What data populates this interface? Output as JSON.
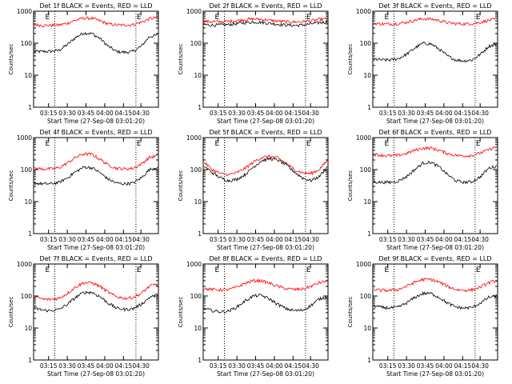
{
  "colors": {
    "events": "#000000",
    "lld": "#ff0000",
    "axis": "#000000"
  },
  "chart_data": [
    {
      "type": "line",
      "title": "Det 1f BLACK = Events, RED = LLD",
      "xlabel": "Start Time (27-Sep-08 03:01:20)",
      "ylabel": "Counts/sec",
      "yscale": "log",
      "ylim": [
        1,
        1000
      ],
      "x_ticks": [
        "03:15",
        "03:30",
        "03:45",
        "04:00",
        "04:15",
        "04:30"
      ],
      "y_ticks": [
        "1",
        "10",
        "100",
        "1000"
      ],
      "markers": [
        "E",
        "E"
      ],
      "series": [
        {
          "color": "#000000",
          "values": [
            55,
            55,
            56,
            60,
            90,
            150,
            210,
            200,
            140,
            80,
            55,
            52,
            55,
            80,
            160,
            180
          ]
        },
        {
          "color": "#ff0000",
          "values": [
            380,
            360,
            360,
            370,
            420,
            520,
            610,
            600,
            500,
            400,
            370,
            370,
            380,
            450,
            580,
            640
          ]
        }
      ]
    },
    {
      "type": "line",
      "title": "Det 2f BLACK = Events, RED = LLD",
      "xlabel": "Start Time (27-Sep-08 03:01:20)",
      "ylabel": "Counts/sec",
      "yscale": "log",
      "ylim": [
        1,
        1000
      ],
      "x_ticks": [
        "03:15",
        "03:30",
        "03:45",
        "04:00",
        "04:15",
        "04:30"
      ],
      "y_ticks": [
        "1",
        "10",
        "100",
        "1000"
      ],
      "markers": [
        "E",
        "E"
      ],
      "series": [
        {
          "color": "#000000",
          "values": [
            380,
            370,
            370,
            380,
            410,
            440,
            460,
            450,
            420,
            390,
            370,
            360,
            370,
            400,
            440,
            460
          ]
        },
        {
          "color": "#ff0000",
          "values": [
            480,
            470,
            470,
            480,
            510,
            550,
            570,
            560,
            520,
            490,
            470,
            460,
            470,
            500,
            550,
            580
          ]
        }
      ]
    },
    {
      "type": "line",
      "title": "Det 3f BLACK = Events, RED = LLD",
      "xlabel": "Start Time (27-Sep-08 03:01:20)",
      "ylabel": "Counts/sec",
      "yscale": "log",
      "ylim": [
        1,
        1000
      ],
      "x_ticks": [
        "03:15",
        "03:30",
        "03:45",
        "04:00",
        "04:15",
        "04:30"
      ],
      "y_ticks": [
        "1",
        "10",
        "100",
        "1000"
      ],
      "markers": [
        "E",
        "E"
      ],
      "series": [
        {
          "color": "#000000",
          "values": [
            32,
            30,
            30,
            33,
            45,
            70,
            100,
            95,
            65,
            40,
            30,
            28,
            30,
            45,
            80,
            95
          ]
        },
        {
          "color": "#ff0000",
          "values": [
            420,
            400,
            400,
            410,
            450,
            520,
            580,
            570,
            510,
            440,
            410,
            400,
            410,
            450,
            520,
            560
          ]
        }
      ]
    },
    {
      "type": "line",
      "title": "Det 4f BLACK = Events, RED = LLD",
      "xlabel": "Start Time (27-Sep-08 03:01:20)",
      "ylabel": "Counts/sec",
      "yscale": "log",
      "ylim": [
        1,
        1000
      ],
      "x_ticks": [
        "03:15",
        "03:30",
        "03:45",
        "04:00",
        "04:15",
        "04:30"
      ],
      "y_ticks": [
        "1",
        "10",
        "100",
        "1000"
      ],
      "markers": [
        "E",
        "E"
      ],
      "series": [
        {
          "color": "#000000",
          "values": [
            38,
            36,
            36,
            40,
            55,
            85,
            120,
            115,
            80,
            50,
            38,
            36,
            38,
            55,
            100,
            120
          ]
        },
        {
          "color": "#ff0000",
          "values": [
            110,
            105,
            105,
            115,
            160,
            240,
            310,
            300,
            210,
            140,
            110,
            105,
            110,
            150,
            240,
            270
          ]
        }
      ]
    },
    {
      "type": "line",
      "title": "Det 5f BLACK = Events, RED = LLD",
      "xlabel": "Start Time (27-Sep-08 03:01:20)",
      "ylabel": "Counts/sec",
      "yscale": "log",
      "ylim": [
        1,
        1000
      ],
      "x_ticks": [
        "03:15",
        "03:30",
        "03:45",
        "04:00",
        "04:15",
        "04:30"
      ],
      "y_ticks": [
        "1",
        "10",
        "100",
        "1000"
      ],
      "markers": [
        "E",
        "E"
      ],
      "series": [
        {
          "color": "#000000",
          "values": [
            130,
            80,
            55,
            45,
            50,
            70,
            120,
            190,
            220,
            200,
            140,
            85,
            55,
            45,
            60,
            120
          ]
        },
        {
          "color": "#ff0000",
          "values": [
            170,
            100,
            75,
            70,
            80,
            110,
            170,
            240,
            260,
            230,
            160,
            100,
            80,
            75,
            100,
            190
          ]
        }
      ]
    },
    {
      "type": "line",
      "title": "Det 6f BLACK = Events, RED = LLD",
      "xlabel": "Start Time (27-Sep-08 03:01:20)",
      "ylabel": "Counts/sec",
      "yscale": "log",
      "ylim": [
        1,
        1000
      ],
      "x_ticks": [
        "03:15",
        "03:30",
        "03:45",
        "04:00",
        "04:15",
        "04:30"
      ],
      "y_ticks": [
        "1",
        "10",
        "100",
        "1000"
      ],
      "markers": [
        "E",
        "E"
      ],
      "series": [
        {
          "color": "#000000",
          "values": [
            42,
            40,
            40,
            44,
            60,
            100,
            160,
            170,
            120,
            70,
            45,
            40,
            42,
            60,
            110,
            130
          ]
        },
        {
          "color": "#ff0000",
          "values": [
            300,
            280,
            270,
            280,
            320,
            400,
            470,
            470,
            400,
            320,
            280,
            270,
            280,
            330,
            420,
            520
          ]
        }
      ]
    },
    {
      "type": "line",
      "title": "Det 7f BLACK = Events, RED = LLD",
      "xlabel": "Start Time (27-Sep-08 03:01:20)",
      "ylabel": "Counts/sec",
      "yscale": "log",
      "ylim": [
        1,
        1000
      ],
      "x_ticks": [
        "03:15",
        "03:30",
        "03:45",
        "04:00",
        "04:15",
        "04:30"
      ],
      "y_ticks": [
        "1",
        "10",
        "100",
        "1000"
      ],
      "markers": [
        "E",
        "E"
      ],
      "series": [
        {
          "color": "#000000",
          "values": [
            42,
            36,
            35,
            38,
            55,
            90,
            130,
            130,
            95,
            60,
            42,
            38,
            40,
            55,
            90,
            110
          ]
        },
        {
          "color": "#ff0000",
          "values": [
            95,
            80,
            78,
            85,
            120,
            190,
            260,
            260,
            200,
            130,
            95,
            85,
            90,
            120,
            200,
            240
          ]
        }
      ]
    },
    {
      "type": "line",
      "title": "Det 8f BLACK = Events, RED = LLD",
      "xlabel": "Start Time (27-Sep-08 03:01:20)",
      "ylabel": "Counts/sec",
      "yscale": "log",
      "ylim": [
        1,
        1000
      ],
      "x_ticks": [
        "03:15",
        "03:30",
        "03:45",
        "04:00",
        "04:15",
        "04:30"
      ],
      "y_ticks": [
        "1",
        "10",
        "100",
        "1000"
      ],
      "markers": [
        "E",
        "E"
      ],
      "series": [
        {
          "color": "#000000",
          "values": [
            40,
            35,
            32,
            34,
            45,
            70,
            100,
            105,
            80,
            55,
            40,
            35,
            36,
            50,
            80,
            95
          ]
        },
        {
          "color": "#ff0000",
          "values": [
            170,
            160,
            155,
            160,
            190,
            250,
            300,
            300,
            250,
            200,
            170,
            160,
            165,
            200,
            260,
            290
          ]
        }
      ]
    },
    {
      "type": "line",
      "title": "Det 9f BLACK = Events, RED = LLD",
      "xlabel": "Start Time (27-Sep-08 03:01:20)",
      "ylabel": "Counts/sec",
      "yscale": "log",
      "ylim": [
        1,
        1000
      ],
      "x_ticks": [
        "03:15",
        "03:30",
        "03:45",
        "04:00",
        "04:15",
        "04:30"
      ],
      "y_ticks": [
        "1",
        "10",
        "100",
        "1000"
      ],
      "markers": [
        "E",
        "E"
      ],
      "series": [
        {
          "color": "#000000",
          "values": [
            50,
            44,
            42,
            45,
            60,
            90,
            120,
            120,
            90,
            60,
            45,
            42,
            44,
            60,
            90,
            100
          ]
        },
        {
          "color": "#ff0000",
          "values": [
            160,
            150,
            150,
            160,
            200,
            270,
            330,
            330,
            270,
            200,
            160,
            150,
            155,
            190,
            260,
            300
          ]
        }
      ]
    }
  ]
}
